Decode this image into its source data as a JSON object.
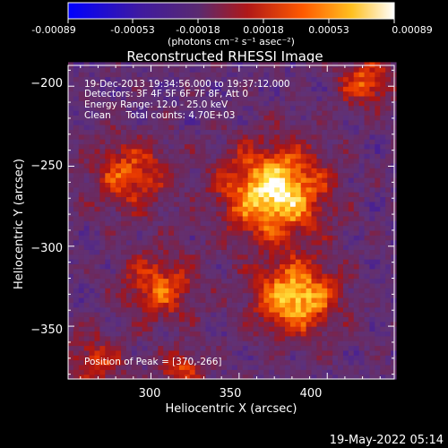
{
  "colorbar": {
    "ticks": [
      "-0.00089",
      "-0.00053",
      "-0.00018",
      "0.00018",
      "0.00053",
      "0.00089"
    ],
    "unit_line": "(photons cm⁻² s⁻¹ asec⁻²)"
  },
  "title": "Reconstructed RHESSI Image",
  "info": {
    "line1": "19-Dec-2013 19:34:56.000 to 19:37:12.000",
    "line2": "Detectors: 3F 4F 5F 6F 7F 8F, Att 0",
    "line3": "Energy Range: 12.0 - 25.0 keV",
    "line4": "Clean     Total counts: 4.70E+03",
    "peak": "Position of Peak = [370,-266]"
  },
  "footer_date": "19-May-2022 05:14",
  "chart_data": {
    "type": "heatmap",
    "title": "Reconstructed RHESSI Image",
    "xlabel": "Heliocentric X (arcsec)",
    "ylabel": "Heliocentric Y (arcsec)",
    "xlim": [
      253,
      438
    ],
    "ylim": [
      -383,
      -187
    ],
    "xticks": [
      300,
      350,
      400
    ],
    "yticks": [
      -200,
      -250,
      -300,
      -350
    ],
    "colorbar_range": [
      -0.00089,
      0.00089
    ],
    "colorbar_ticks": [
      -0.00089,
      -0.00053,
      -0.00018,
      0.00018,
      0.00053,
      0.00089
    ],
    "peak_position": [
      370,
      -266
    ],
    "sources": [
      {
        "x": 370,
        "y": -266,
        "strength": 1.0,
        "width": 20
      },
      {
        "x": 382,
        "y": -332,
        "strength": 0.88,
        "width": 16
      },
      {
        "x": 288,
        "y": -255,
        "strength": 0.55,
        "width": 16
      },
      {
        "x": 305,
        "y": -325,
        "strength": 0.55,
        "width": 15
      },
      {
        "x": 422,
        "y": -197,
        "strength": 0.55,
        "width": 11
      },
      {
        "x": 268,
        "y": -372,
        "strength": 0.45,
        "width": 12
      },
      {
        "x": 318,
        "y": -378,
        "strength": 0.5,
        "width": 9
      }
    ]
  }
}
